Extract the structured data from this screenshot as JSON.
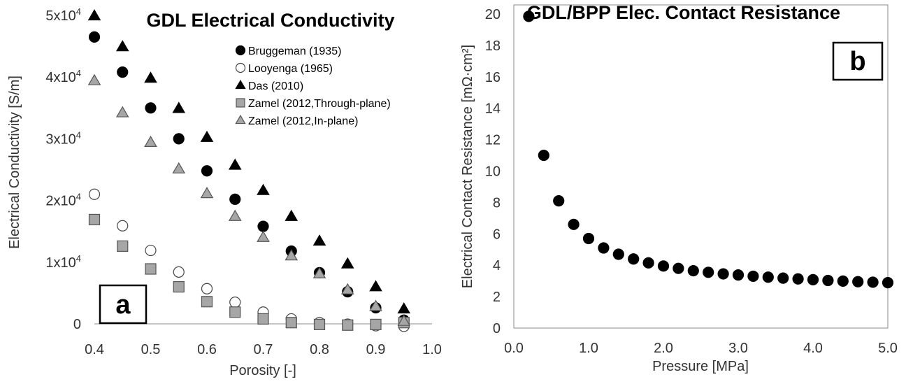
{
  "chart_data": [
    {
      "type": "scatter",
      "title": "GDL Electrical Conductivity",
      "xlabel": "Porosity [-]",
      "ylabel": "Electrical Conductivity [S/m]",
      "panel_label": "a",
      "xlim": [
        0.4,
        1.0
      ],
      "ylim": [
        0,
        50000
      ],
      "x_ticks": [
        "0.4",
        "0.5",
        "0.6",
        "0.7",
        "0.8",
        "0.9",
        "1.0"
      ],
      "x_tick_values": [
        0.4,
        0.5,
        0.6,
        0.7,
        0.8,
        0.9,
        1.0
      ],
      "y_ticks": [
        {
          "value": 0,
          "mantissa": "0",
          "exp": ""
        },
        {
          "value": 10000,
          "mantissa": "1x10",
          "exp": "4"
        },
        {
          "value": 20000,
          "mantissa": "2x10",
          "exp": "4"
        },
        {
          "value": 30000,
          "mantissa": "3x10",
          "exp": "4"
        },
        {
          "value": 40000,
          "mantissa": "4x10",
          "exp": "4"
        },
        {
          "value": 50000,
          "mantissa": "5x10",
          "exp": "4"
        }
      ],
      "legend_position": "top-right",
      "x": [
        0.4,
        0.45,
        0.5,
        0.55,
        0.6,
        0.65,
        0.7,
        0.75,
        0.8,
        0.85,
        0.9,
        0.95
      ],
      "series": [
        {
          "name": "Bruggeman (1935)",
          "marker": "circle",
          "fill": "#000000",
          "stroke": "#000000",
          "values": [
            46500,
            40800,
            35000,
            30000,
            24800,
            20200,
            15800,
            11800,
            8300,
            5200,
            2600,
            600
          ]
        },
        {
          "name": "Looyenga (1965)",
          "marker": "circle",
          "fill": "#ffffff",
          "stroke": "#444444",
          "values": [
            21000,
            15900,
            11900,
            8400,
            5700,
            3500,
            1900,
            800,
            200,
            -50,
            -300,
            -400
          ]
        },
        {
          "name": "Das (2010)",
          "marker": "triangle",
          "fill": "#000000",
          "stroke": "#000000",
          "values": [
            49900,
            44900,
            39800,
            34900,
            30200,
            25700,
            21600,
            17400,
            13400,
            9700,
            6000,
            2400
          ]
        },
        {
          "name": "Zamel (2012,Through-plane)",
          "marker": "square",
          "fill": "#a6a6a6",
          "stroke": "#555555",
          "values": [
            16900,
            12600,
            8900,
            6000,
            3600,
            1900,
            800,
            200,
            -100,
            -200,
            -100,
            200
          ]
        },
        {
          "name": "Zamel (2012,In-plane)",
          "marker": "triangle",
          "fill": "#a6a6a6",
          "stroke": "#555555",
          "values": [
            39400,
            34200,
            29400,
            25100,
            21100,
            17400,
            14000,
            11000,
            8100,
            5500,
            2800,
            400
          ]
        }
      ]
    },
    {
      "type": "scatter",
      "title": "GDL/BPP Elec. Contact Resistance",
      "xlabel": "Pressure [MPa]",
      "ylabel": "Electrical Contact Resistance [mΩ·cm²]",
      "panel_label": "b",
      "xlim": [
        0,
        5
      ],
      "ylim": [
        0,
        20
      ],
      "x_ticks": [
        "0.0",
        "1.0",
        "2.0",
        "3.0",
        "4.0",
        "5.0"
      ],
      "x_tick_values": [
        0,
        1,
        2,
        3,
        4,
        5
      ],
      "y_ticks": [
        "0",
        "2",
        "4",
        "6",
        "8",
        "10",
        "12",
        "14",
        "16",
        "18",
        "20"
      ],
      "y_tick_values": [
        0,
        2,
        4,
        6,
        8,
        10,
        12,
        14,
        16,
        18,
        20
      ],
      "series": [
        {
          "name": "Contact Resistance",
          "marker": "circle",
          "fill": "#000000",
          "stroke": "#000000",
          "x": [
            0.2,
            0.4,
            0.6,
            0.8,
            1.0,
            1.2,
            1.4,
            1.6,
            1.8,
            2.0,
            2.2,
            2.4,
            2.6,
            2.8,
            3.0,
            3.2,
            3.4,
            3.6,
            3.8,
            4.0,
            4.2,
            4.4,
            4.6,
            4.8,
            5.0
          ],
          "values": [
            19.85,
            11.0,
            8.1,
            6.6,
            5.7,
            5.1,
            4.7,
            4.4,
            4.15,
            3.95,
            3.8,
            3.65,
            3.55,
            3.45,
            3.38,
            3.3,
            3.24,
            3.18,
            3.13,
            3.08,
            3.03,
            2.99,
            2.95,
            2.92,
            2.89
          ]
        }
      ]
    }
  ]
}
